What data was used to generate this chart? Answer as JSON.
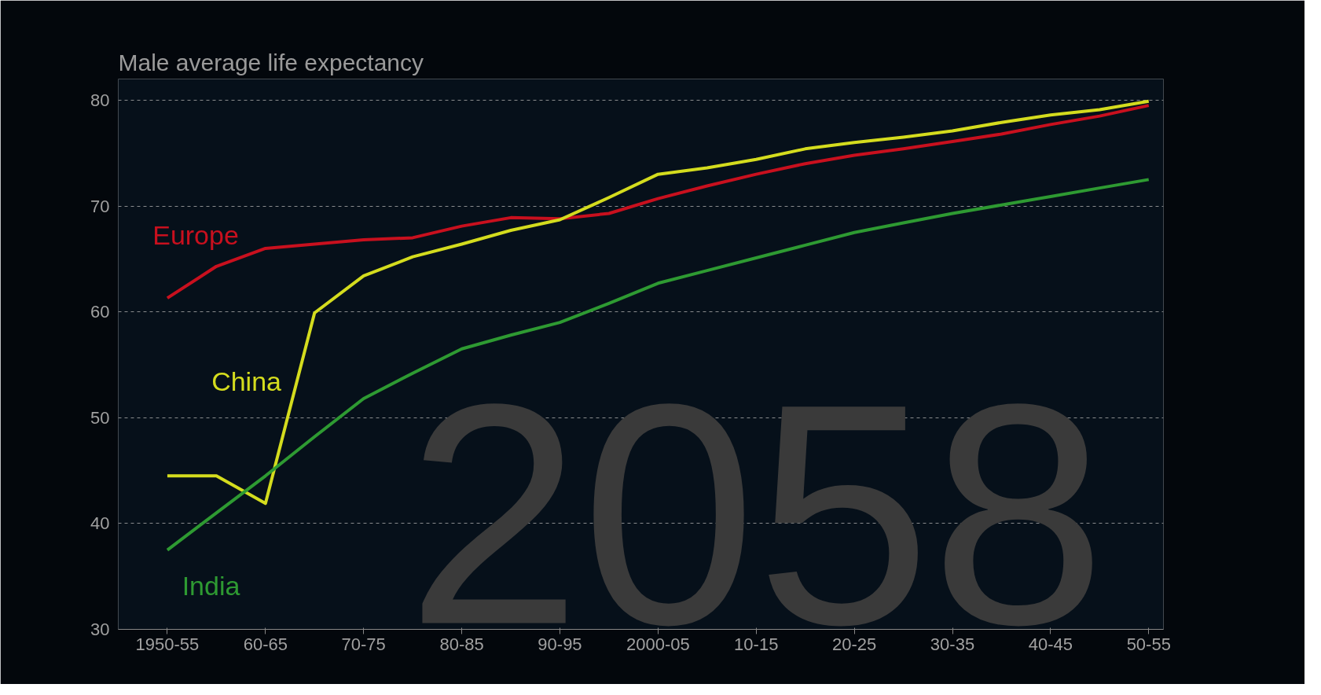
{
  "chart_data": {
    "type": "line",
    "title": "Male average life expectancy",
    "categories": [
      "1950-55",
      null,
      "60-65",
      null,
      "70-75",
      null,
      "80-85",
      null,
      "90-95",
      null,
      "2000-05",
      null,
      "10-15",
      null,
      "20-25",
      null,
      "30-35",
      null,
      "40-45",
      null,
      "50-55"
    ],
    "series": [
      {
        "name": "Europe",
        "color": "#c8101e",
        "values": [
          61.3,
          64.3,
          66.0,
          66.4,
          66.8,
          67.0,
          68.1,
          68.9,
          68.8,
          69.3,
          70.7,
          71.9,
          73.0,
          74.0,
          74.8,
          75.4,
          76.1,
          76.8,
          77.7,
          78.5,
          79.5
        ]
      },
      {
        "name": "China",
        "color": "#d4dc1e",
        "values": [
          44.5,
          44.5,
          41.9,
          59.9,
          63.4,
          65.2,
          66.4,
          67.7,
          68.7,
          70.8,
          73.0,
          73.6,
          74.4,
          75.4,
          76.0,
          76.5,
          77.1,
          77.9,
          78.6,
          79.1,
          79.9
        ]
      },
      {
        "name": "India",
        "color": "#2e9a32",
        "values": [
          37.5,
          41.0,
          44.5,
          48.2,
          51.8,
          54.2,
          56.5,
          57.8,
          59.0,
          60.8,
          62.7,
          63.9,
          65.1,
          66.3,
          67.5,
          68.4,
          69.3,
          70.1,
          70.9,
          71.7,
          72.5
        ]
      }
    ],
    "ylim": [
      30,
      82
    ],
    "yticks": [
      30,
      40,
      50,
      60,
      70,
      80
    ],
    "grid": "y",
    "marker": "none",
    "line_style": "solid",
    "annotations": [
      "2058"
    ]
  }
}
